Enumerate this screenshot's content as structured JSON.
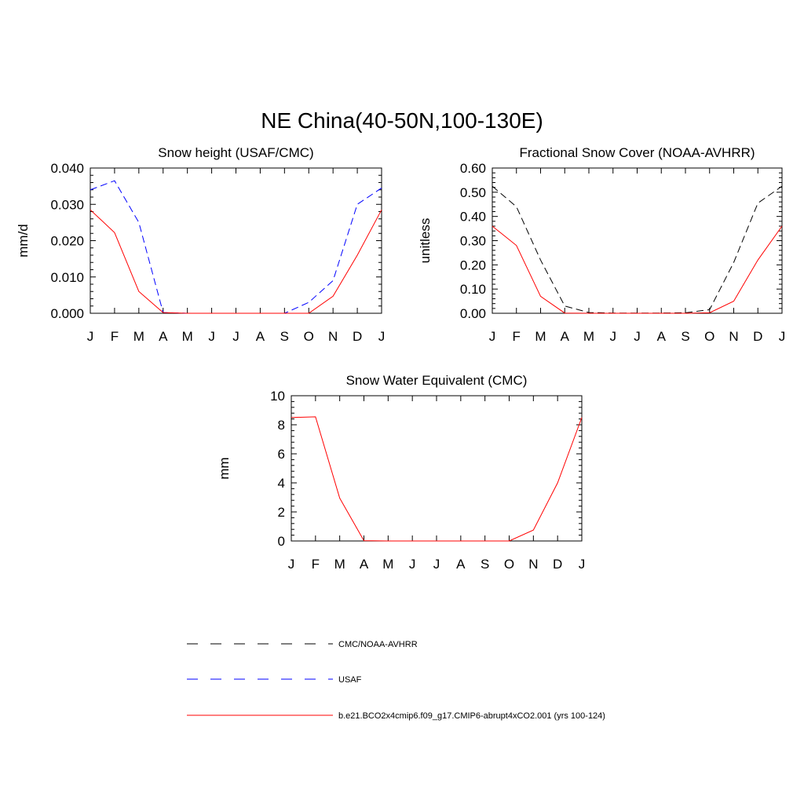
{
  "title": "NE China(40-50N,100-130E)",
  "colors": {
    "red": "#ff0000",
    "blue": "#0000ff",
    "black": "#000000"
  },
  "months": [
    "J",
    "F",
    "M",
    "A",
    "M",
    "J",
    "J",
    "A",
    "S",
    "O",
    "N",
    "D",
    "J"
  ],
  "legend": [
    {
      "label": "CMC/NOAA-AVHRR",
      "color": "#000000",
      "dash": "dashed"
    },
    {
      "label": "USAF",
      "color": "#0000ff",
      "dash": "dashed"
    },
    {
      "label": "b.e21.BCO2x4cmip6.f09_g17.CMIP6-abrupt4xCO2.001 (yrs 100-124)",
      "color": "#ff0000",
      "dash": "solid"
    }
  ],
  "chart_data": [
    {
      "type": "line",
      "title": "Snow height (USAF/CMC)",
      "ylabel": "mm/d",
      "ylim": [
        0,
        0.04
      ],
      "yticks": [
        "0.000",
        "0.010",
        "0.020",
        "0.030",
        "0.040"
      ],
      "ytick_values": [
        0,
        0.01,
        0.02,
        0.03,
        0.04
      ],
      "x": [
        "J",
        "F",
        "M",
        "A",
        "M",
        "J",
        "J",
        "A",
        "S",
        "O",
        "N",
        "D",
        "J"
      ],
      "series": [
        {
          "name": "USAF",
          "color": "#0000ff",
          "dash": "dashed",
          "values": [
            0.034,
            0.0365,
            0.025,
            0.0002,
            0,
            0,
            0,
            0,
            0,
            0.003,
            0.009,
            0.03,
            0.0345
          ]
        },
        {
          "name": "b.e21.BCO2x4cmip6.f09_g17.CMIP6-abrupt4xCO2.001 (yrs 100-124)",
          "color": "#ff0000",
          "dash": "solid",
          "values": [
            0.0285,
            0.0222,
            0.006,
            0.0002,
            0,
            0,
            0,
            0,
            0,
            0,
            0.0047,
            0.016,
            0.0285
          ]
        }
      ]
    },
    {
      "type": "line",
      "title": "Fractional Snow Cover (NOAA-AVHRR)",
      "ylabel": "unitless",
      "ylim": [
        0,
        0.6
      ],
      "yticks": [
        "0.00",
        "0.10",
        "0.20",
        "0.30",
        "0.40",
        "0.50",
        "0.60"
      ],
      "ytick_values": [
        0,
        0.1,
        0.2,
        0.3,
        0.4,
        0.5,
        0.6
      ],
      "x": [
        "J",
        "F",
        "M",
        "A",
        "M",
        "J",
        "J",
        "A",
        "S",
        "O",
        "N",
        "D",
        "J"
      ],
      "series": [
        {
          "name": "CMC/NOAA-AVHRR",
          "color": "#000000",
          "dash": "dashed",
          "values": [
            0.525,
            0.44,
            0.22,
            0.03,
            0.003,
            0.001,
            0.001,
            0.001,
            0.002,
            0.015,
            0.21,
            0.455,
            0.525
          ]
        },
        {
          "name": "b.e21.BCO2x4cmip6.f09_g17.CMIP6-abrupt4xCO2.001 (yrs 100-124)",
          "color": "#ff0000",
          "dash": "solid",
          "values": [
            0.36,
            0.28,
            0.07,
            0.001,
            0,
            0,
            0,
            0,
            0,
            0.002,
            0.05,
            0.22,
            0.36
          ]
        }
      ]
    },
    {
      "type": "line",
      "title": "Snow Water Equivalent (CMC)",
      "ylabel": "mm",
      "ylim": [
        0,
        10
      ],
      "yticks": [
        "0",
        "2",
        "4",
        "6",
        "8",
        "10"
      ],
      "ytick_values": [
        0,
        2,
        4,
        6,
        8,
        10
      ],
      "x": [
        "J",
        "F",
        "M",
        "A",
        "M",
        "J",
        "J",
        "A",
        "S",
        "O",
        "N",
        "D",
        "J"
      ],
      "series": [
        {
          "name": "CMC/NOAA-AVHRR",
          "color": "#000000",
          "dash": "dashed",
          "values": [
            0,
            0,
            0,
            0,
            0,
            0,
            0,
            0,
            0,
            0,
            0,
            0,
            0
          ]
        },
        {
          "name": "b.e21.BCO2x4cmip6.f09_g17.CMIP6-abrupt4xCO2.001 (yrs 100-124)",
          "color": "#ff0000",
          "dash": "solid",
          "values": [
            8.5,
            8.55,
            2.95,
            0.02,
            0,
            0,
            0,
            0,
            0,
            0,
            0.75,
            4.0,
            8.5
          ]
        }
      ]
    }
  ]
}
